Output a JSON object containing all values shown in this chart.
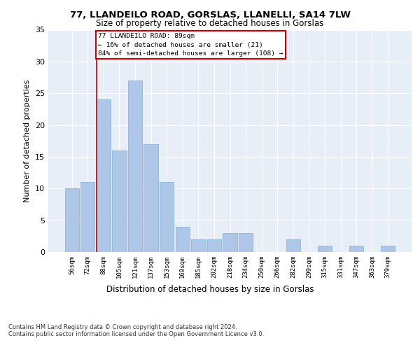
{
  "title_line1": "77, LLANDEILO ROAD, GORSLAS, LLANELLI, SA14 7LW",
  "title_line2": "Size of property relative to detached houses in Gorslas",
  "xlabel": "Distribution of detached houses by size in Gorslas",
  "ylabel": "Number of detached properties",
  "categories": [
    "56sqm",
    "72sqm",
    "88sqm",
    "105sqm",
    "121sqm",
    "137sqm",
    "153sqm",
    "169sqm",
    "185sqm",
    "202sqm",
    "218sqm",
    "234sqm",
    "250sqm",
    "266sqm",
    "282sqm",
    "299sqm",
    "315sqm",
    "331sqm",
    "347sqm",
    "363sqm",
    "379sqm"
  ],
  "values": [
    10,
    11,
    24,
    16,
    27,
    17,
    11,
    4,
    2,
    2,
    3,
    3,
    0,
    0,
    2,
    0,
    1,
    0,
    1,
    0,
    1
  ],
  "bar_color": "#aec6e8",
  "bar_edge_color": "#7bafd4",
  "vline_color": "#cc0000",
  "annotation_text": "77 LLANDEILO ROAD: 89sqm\n← 16% of detached houses are smaller (21)\n84% of semi-detached houses are larger (108) →",
  "annotation_box_color": "#ffffff",
  "annotation_box_edge": "#cc0000",
  "ylim": [
    0,
    35
  ],
  "yticks": [
    0,
    5,
    10,
    15,
    20,
    25,
    30,
    35
  ],
  "background_color": "#e8eef8",
  "footer_line1": "Contains HM Land Registry data © Crown copyright and database right 2024.",
  "footer_line2": "Contains public sector information licensed under the Open Government Licence v3.0."
}
